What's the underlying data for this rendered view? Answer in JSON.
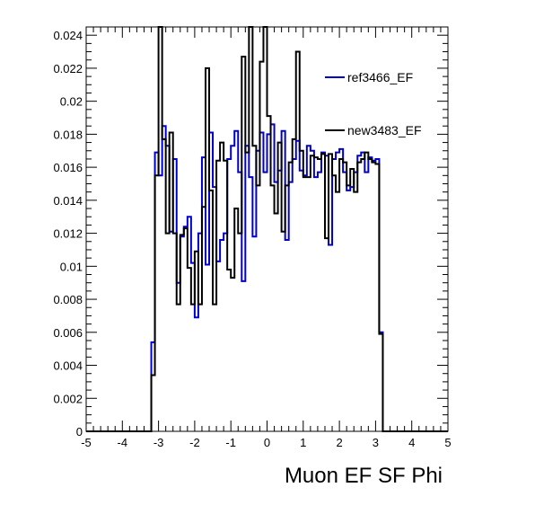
{
  "chart_data": {
    "type": "histogram",
    "xlabel": "Muon EF SF Phi",
    "ylabel": "",
    "xlim": [
      -5,
      5
    ],
    "ylim": [
      0,
      0.0245
    ],
    "x_ticks": [
      -5,
      -4,
      -3,
      -2,
      -1,
      0,
      1,
      2,
      3,
      4,
      5
    ],
    "x_tick_labels": [
      "-5",
      "-4",
      "-3",
      "-2",
      "-1",
      "0",
      "1",
      "2",
      "3",
      "4",
      "5"
    ],
    "y_ticks": [
      0,
      0.002,
      0.004,
      0.006,
      0.008,
      0.01,
      0.012,
      0.014,
      0.016,
      0.018,
      0.02,
      0.022,
      0.024
    ],
    "y_tick_labels": [
      "0",
      "0.002",
      "0.004",
      "0.006",
      "0.008",
      "0.01",
      "0.012",
      "0.014",
      "0.016",
      "0.018",
      "0.02",
      "0.022",
      "0.024"
    ],
    "legend_position": "top-right",
    "bin_edges_range": [
      -3.2,
      3.2
    ],
    "bin_width": 0.1,
    "series": [
      {
        "name": "ref3466_EF",
        "color": "#0000cc",
        "values": [
          0.0054,
          0.0169,
          0.0155,
          0.0185,
          0.0173,
          0.0121,
          0.0165,
          0.009,
          0.0118,
          0.0124,
          0.013,
          0.0102,
          0.0069,
          0.012,
          0.0166,
          0.0101,
          0.0181,
          0.0148,
          0.0103,
          0.0116,
          0.012,
          0.0165,
          0.0173,
          0.0182,
          0.0157,
          0.0091,
          0.0173,
          0.0154,
          0.0118,
          0.017,
          0.0181,
          0.0157,
          0.018,
          0.0186,
          0.0151,
          0.0158,
          0.0182,
          0.0116,
          0.0151,
          0.0165,
          0.0176,
          0.0158,
          0.0155,
          0.0173,
          0.017,
          0.0154,
          0.0157,
          0.0169,
          0.0167,
          0.0113,
          0.0165,
          0.0169,
          0.0171,
          0.0157,
          0.0146,
          0.0148,
          0.0157,
          0.0167,
          0.0169,
          0.0157,
          0.0166,
          0.0164,
          0.0165,
          0.006
        ]
      },
      {
        "name": "new3483_EF",
        "color": "#000000",
        "values": [
          0.0034,
          0.0155,
          0.0245,
          0.0177,
          0.012,
          0.0181,
          0.012,
          0.0077,
          0.0119,
          0.0123,
          0.0099,
          0.0077,
          0.0109,
          0.0077,
          0.0136,
          0.022,
          0.0146,
          0.0077,
          0.0164,
          0.0175,
          0.0164,
          0.0098,
          0.0093,
          0.0135,
          0.012,
          0.0227,
          0.0169,
          0.0245,
          0.0173,
          0.0149,
          0.0224,
          0.0245,
          0.0191,
          0.0149,
          0.0132,
          0.0175,
          0.0121,
          0.0149,
          0.0163,
          0.0177,
          0.023,
          0.017,
          0.0154,
          0.0154,
          0.0167,
          0.0166,
          0.0165,
          0.0168,
          0.0117,
          0.0168,
          0.0155,
          0.0145,
          0.0165,
          0.0163,
          0.0149,
          0.0159,
          0.0145,
          0.0163,
          0.0165,
          0.0169,
          0.0165,
          0.0163,
          0.0162,
          0.0059
        ]
      }
    ]
  }
}
